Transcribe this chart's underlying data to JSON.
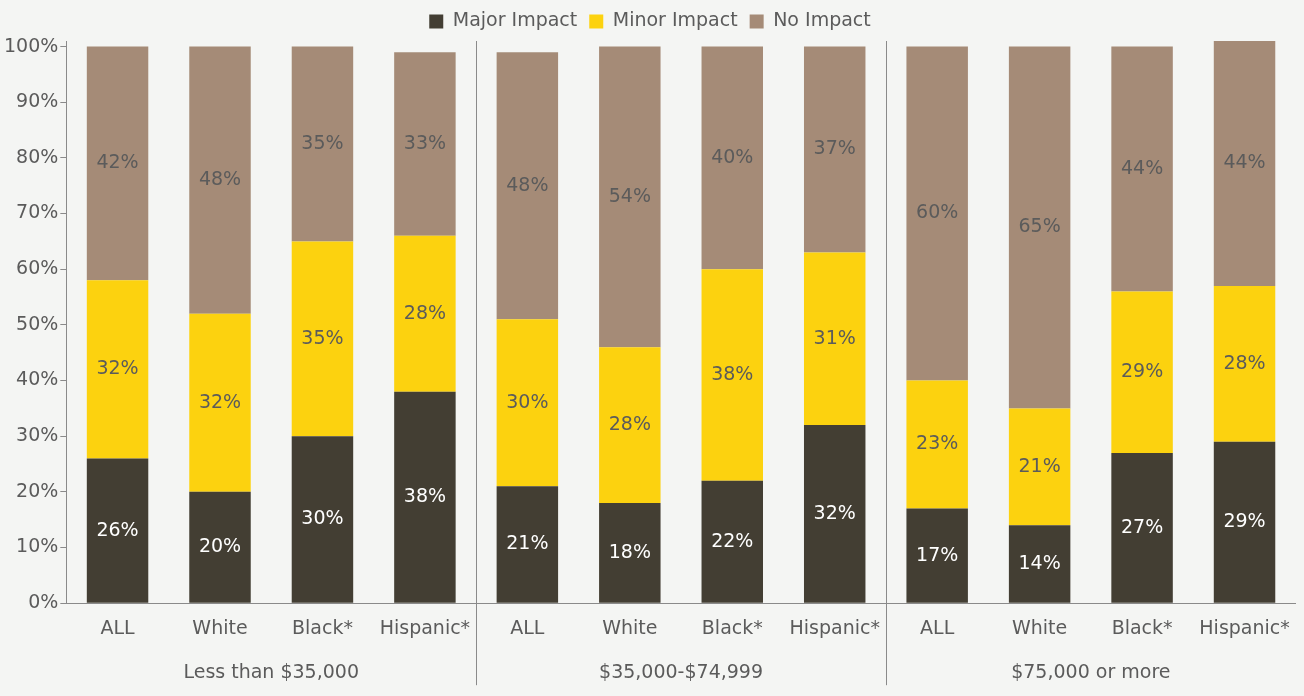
{
  "chart_data": {
    "type": "bar",
    "stacked": true,
    "legend": "top",
    "grid": false,
    "categories": [
      "ALL",
      "White",
      "Black*",
      "Hispanic*",
      "ALL",
      "White",
      "Black*",
      "Hispanic*",
      "ALL",
      "White",
      "Black*",
      "Hispanic*"
    ],
    "series": [
      {
        "name": "Major Impact",
        "color": "#433e33",
        "values": [
          26,
          20,
          30,
          38,
          21,
          18,
          22,
          32,
          17,
          14,
          27,
          29
        ],
        "value_labels": [
          "26%",
          "20%",
          "30%",
          "38%",
          "21%",
          "18%",
          "22%",
          "32%",
          "17%",
          "14%",
          "27%",
          "29%"
        ]
      },
      {
        "name": "Minor Impact",
        "color": "#fcd20f",
        "values": [
          32,
          32,
          35,
          28,
          30,
          28,
          38,
          31,
          23,
          21,
          29,
          28
        ],
        "value_labels": [
          "32%",
          "32%",
          "35%",
          "28%",
          "30%",
          "28%",
          "38%",
          "31%",
          "23%",
          "21%",
          "29%",
          "28%"
        ]
      },
      {
        "name": "No Impact",
        "color": "#a58b77",
        "values": [
          42,
          48,
          35,
          33,
          48,
          54,
          40,
          37,
          60,
          65,
          44,
          44
        ],
        "value_labels": [
          "42%",
          "48%",
          "35%",
          "33%",
          "48%",
          "54%",
          "40%",
          "37%",
          "60%",
          "65%",
          "44%",
          "44%"
        ]
      }
    ],
    "ylim": [
      0,
      101
    ],
    "yticks": [
      {
        "value": 0,
        "label": "0%"
      },
      {
        "value": 10,
        "label": "10%"
      },
      {
        "value": 20,
        "label": "20%"
      },
      {
        "value": 30,
        "label": "30%"
      },
      {
        "value": 40,
        "label": "40%"
      },
      {
        "value": 50,
        "label": "50%"
      },
      {
        "value": 60,
        "label": "60%"
      },
      {
        "value": 70,
        "label": "70%"
      },
      {
        "value": 80,
        "label": "80%"
      },
      {
        "value": 90,
        "label": "90%"
      },
      {
        "value": 100,
        "label": "100%"
      }
    ],
    "annotations": [
      "Less than $35,000",
      "$35,000-$74,999",
      "$75,000 or more"
    ]
  }
}
